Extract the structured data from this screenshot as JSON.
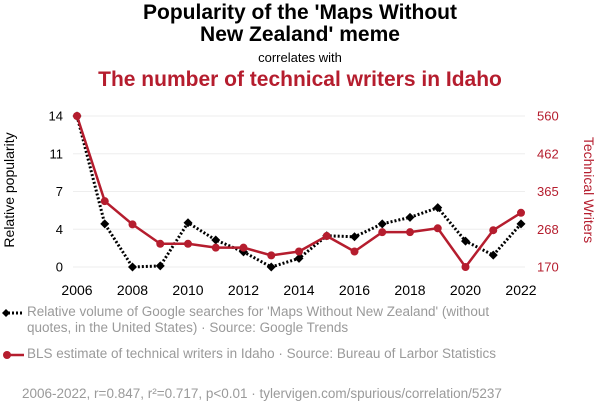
{
  "header": {
    "title": "Popularity of the 'Maps Without\nNew Zealand' meme",
    "correlates": "correlates with",
    "title2": "The number of technical writers in Idaho"
  },
  "legend": {
    "series1": "Relative volume of Google searches for 'Maps Without New Zealand' (without quotes, in the United States) · Source: Google Trends",
    "series2": "BLS estimate of technical writers in Idaho · Source: Bureau of Larbor Statistics"
  },
  "footer": "2006-2022, r=0.847, r²=0.717, p<0.01 · tylervigen.com/spurious/correlation/5237",
  "colors": {
    "series1": "#000000",
    "series2": "#b51d2e",
    "axis_right": "#b51d2e",
    "grid": "#eeeeee"
  },
  "chart_data": {
    "type": "line",
    "x": [
      2006,
      2007,
      2008,
      2009,
      2010,
      2011,
      2012,
      2013,
      2014,
      2015,
      2016,
      2017,
      2018,
      2019,
      2020,
      2021,
      2022
    ],
    "xticks": [
      "2006",
      "2008",
      "2010",
      "2012",
      "2014",
      "2016",
      "2018",
      "2020",
      "2022"
    ],
    "xlim": [
      2006,
      2022
    ],
    "ylabel_left": "Relative popularity",
    "ylabel_right": "Technical Writers",
    "yticks_left": [
      "0",
      "4",
      "7",
      "11",
      "14"
    ],
    "yticks_right": [
      "170",
      "268",
      "365",
      "462",
      "560"
    ],
    "ylim_left": [
      0,
      14
    ],
    "ylim_right": [
      170,
      560
    ],
    "series": [
      {
        "name": "Relative volume of Google searches for 'Maps Without New Zealand' (without quotes, in the United States) · Source: Google Trends",
        "axis": "left",
        "style": "dotted",
        "marker": "diamond",
        "values": [
          14,
          4,
          0,
          0.1,
          4.1,
          2.5,
          1.4,
          0,
          0.8,
          2.9,
          2.8,
          4,
          4.6,
          5.5,
          2.4,
          1.1,
          4
        ]
      },
      {
        "name": "BLS estimate of technical writers in Idaho · Source: Bureau of Larbor Statistics",
        "axis": "right",
        "style": "solid",
        "marker": "circle",
        "values": [
          560,
          340,
          280,
          230,
          230,
          220,
          220,
          200,
          210,
          250,
          210,
          260,
          260,
          270,
          170,
          265,
          310
        ]
      }
    ],
    "grid": true,
    "legend_position": "bottom"
  }
}
